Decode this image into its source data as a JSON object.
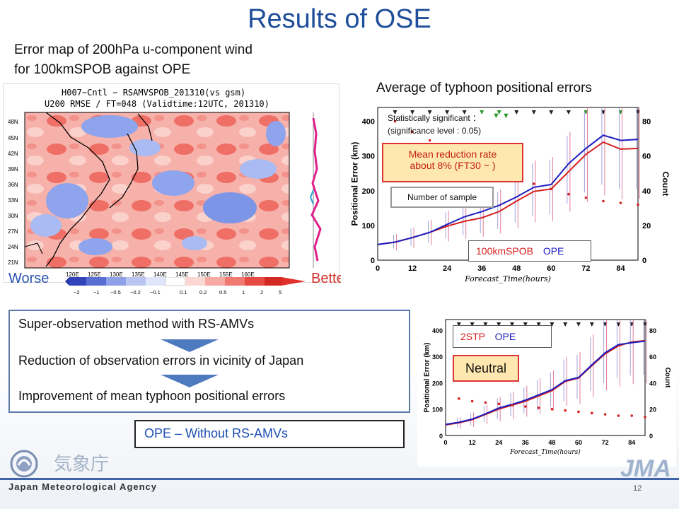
{
  "title": "Results of OSE",
  "subtitle": [
    "Error map of 200hPa u-component wind",
    "for 100kmSPOB against OPE"
  ],
  "map": {
    "header1": "H007−Cntl − RSAMVSPOB_201310(vs gsm)",
    "header2": "U200 RMSE / FT=048 (Validtime:12UTC, 201310)",
    "lat_labels": [
      "48N",
      "45N",
      "42N",
      "39N",
      "36N",
      "33N",
      "30N",
      "27N",
      "24N",
      "21N"
    ],
    "lon_labels": [
      "120E",
      "125E",
      "130E",
      "135E",
      "140E",
      "145E",
      "150E",
      "155E",
      "160E"
    ],
    "colorbar_ticks": [
      "−2",
      "−1",
      "−0.5",
      "−0.2",
      "−0.1",
      "0.1",
      "0.2",
      "0.5",
      "1",
      "2",
      "5"
    ],
    "worse": "Worse",
    "better": "Better",
    "colors": {
      "blue": "#6f8ee0",
      "red": "#f07a72"
    }
  },
  "avg_title": "Average of typhoon positional errors",
  "chart1_text": {
    "sig1": "Statistically significant ：",
    "sig2": "(significance level : 0.05)",
    "reduction1": "Mean reduction rate",
    "reduction2": "about 8% (FT30 ~ )",
    "num_sample": "Number of sample",
    "legend_a": "100kmSPOB",
    "legend_b": "OPE"
  },
  "chart2_text": {
    "legend_a": "2STP",
    "legend_b": "OPE",
    "neutral": "Neutral"
  },
  "flow": {
    "step1": "Super-observation method with RS-AMVs",
    "step2": "Reduction of observation errors in vicinity of Japan",
    "step3": "Improvement of mean typhoon positional errors"
  },
  "ope_box": "OPE – Without RS-AMVs",
  "footer": {
    "agency": "Japan Meteorological Agency",
    "page": "12",
    "logo": "JMA",
    "jp": "気象庁"
  },
  "chart_data": [
    {
      "type": "line",
      "xlabel": "Forecast_Time(hours)",
      "ylabel": "Positional Error (km)",
      "y2label": "Count",
      "x": [
        0,
        6,
        12,
        18,
        24,
        30,
        36,
        42,
        48,
        54,
        60,
        66,
        72,
        78,
        84,
        90
      ],
      "xticks": [
        0,
        12,
        24,
        36,
        48,
        60,
        72,
        84
      ],
      "yticks": [
        0,
        100,
        200,
        300,
        400
      ],
      "y2ticks": [
        0,
        20,
        40,
        60,
        80
      ],
      "ylim": [
        0,
        440
      ],
      "xlim": [
        0,
        90
      ],
      "series": [
        {
          "name": "100kmSPOB",
          "color": "#d42020",
          "values": [
            45,
            52,
            65,
            80,
            98,
            112,
            122,
            140,
            170,
            198,
            205,
            255,
            305,
            340,
            320,
            322
          ]
        },
        {
          "name": "OPE",
          "color": "#1c1cc0",
          "values": [
            45,
            52,
            65,
            80,
            103,
            125,
            140,
            158,
            182,
            210,
            218,
            278,
            322,
            360,
            345,
            348
          ]
        },
        {
          "name": "Count",
          "color": "#d42020",
          "values": [
            null,
            80,
            74,
            69,
            65,
            61,
            57,
            52,
            48,
            44,
            41,
            38,
            36,
            34,
            33,
            32
          ]
        }
      ],
      "significant": [
        "n",
        "n",
        "n",
        "n",
        "n",
        "n",
        "s",
        "s",
        "n",
        "n",
        "n",
        "n",
        "s",
        "n",
        "s",
        "n"
      ]
    },
    {
      "type": "line",
      "xlabel": "Forecast_Time(hours)",
      "ylabel": "Positional Error (km)",
      "y2label": "Count",
      "x": [
        0,
        6,
        12,
        18,
        24,
        30,
        36,
        42,
        48,
        54,
        60,
        66,
        72,
        78,
        84,
        90
      ],
      "xticks": [
        0,
        12,
        24,
        36,
        48,
        60,
        72,
        84
      ],
      "yticks": [
        0,
        100,
        200,
        300,
        400
      ],
      "y2ticks": [
        0,
        20,
        40,
        60,
        80
      ],
      "ylim": [
        0,
        440
      ],
      "xlim": [
        0,
        90
      ],
      "series": [
        {
          "name": "2STP",
          "color": "#d42020",
          "values": [
            40,
            48,
            60,
            80,
            100,
            115,
            130,
            150,
            170,
            205,
            218,
            265,
            310,
            340,
            355,
            360
          ]
        },
        {
          "name": "OPE",
          "color": "#1c1cc0",
          "values": [
            42,
            50,
            62,
            82,
            104,
            118,
            134,
            154,
            174,
            208,
            220,
            268,
            314,
            345,
            352,
            358
          ]
        },
        {
          "name": "Count",
          "color": "#d42020",
          "values": [
            null,
            28,
            26,
            25,
            24,
            23,
            22,
            21,
            20,
            19,
            18,
            17,
            16,
            15,
            15,
            14
          ]
        }
      ]
    }
  ]
}
